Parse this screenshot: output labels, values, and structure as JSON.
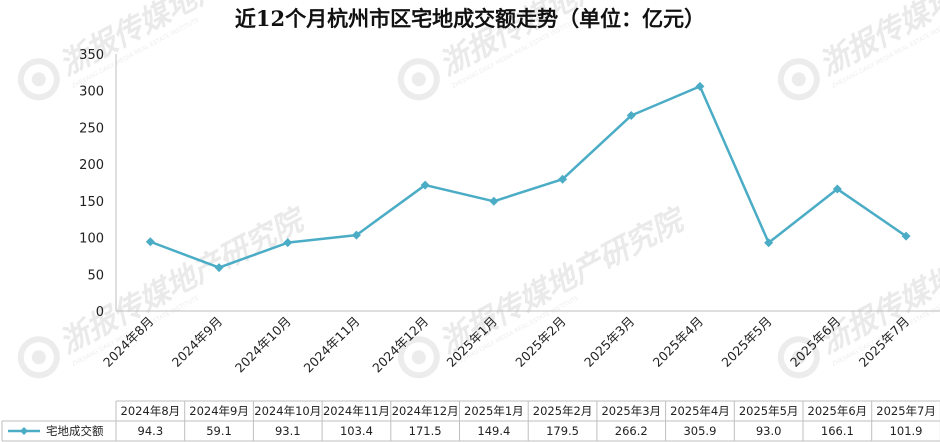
{
  "chart_data": {
    "type": "line",
    "title": "近12个月杭州市区宅地成交额走势（单位：亿元）",
    "categories": [
      "2024年8月",
      "2024年9月",
      "2024年10月",
      "2024年11月",
      "2024年12月",
      "2025年1月",
      "2025年2月",
      "2025年3月",
      "2025年4月",
      "2025年5月",
      "2025年6月",
      "2025年7月"
    ],
    "series": [
      {
        "name": "宅地成交额",
        "values": [
          94.3,
          59.1,
          93.1,
          103.4,
          171.5,
          149.4,
          179.5,
          266.2,
          305.9,
          93.0,
          166.1,
          101.9
        ],
        "table_values": [
          "94.3",
          "59.1",
          "93.1",
          "103.4",
          "171.5",
          "149.4",
          "179.5",
          "266.2",
          "305.9",
          "93.0",
          "166.1",
          "101.9"
        ],
        "color": "#4bacc6"
      }
    ],
    "ylim": [
      0,
      350
    ],
    "yticks": [
      0,
      50,
      100,
      150,
      200,
      250,
      300,
      350
    ],
    "grid": false,
    "legend": "data-table"
  },
  "watermark": {
    "brand": "浙报传媒地产研究院",
    "english": "ZHEJIANG DAILY MEDIA REAL ESTATE INSTITUTE",
    "color": "#d9d9d9"
  }
}
